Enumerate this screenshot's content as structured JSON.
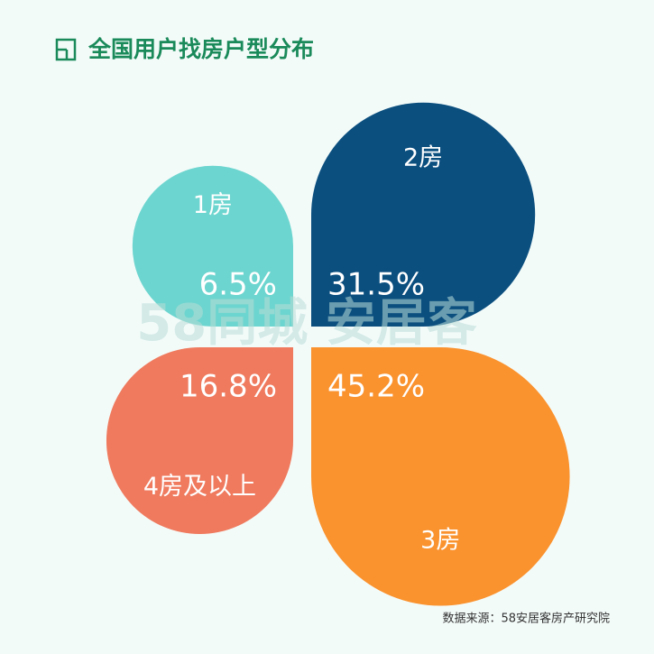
{
  "chart_data": {
    "type": "petal",
    "title": "全国用户找房户型分布",
    "categories": [
      "1房",
      "2房",
      "3房",
      "4房及以上"
    ],
    "values": [
      6.5,
      31.5,
      45.2,
      16.8
    ],
    "value_labels": [
      "6.5%",
      "31.5%",
      "45.2%",
      "16.8%"
    ],
    "colors": [
      "#6dd5cf",
      "#0b4f7f",
      "#fa922e",
      "#ef7a5e"
    ],
    "watermark": "58同城 安居客",
    "source": "数据来源：58安居客房产研究院"
  }
}
